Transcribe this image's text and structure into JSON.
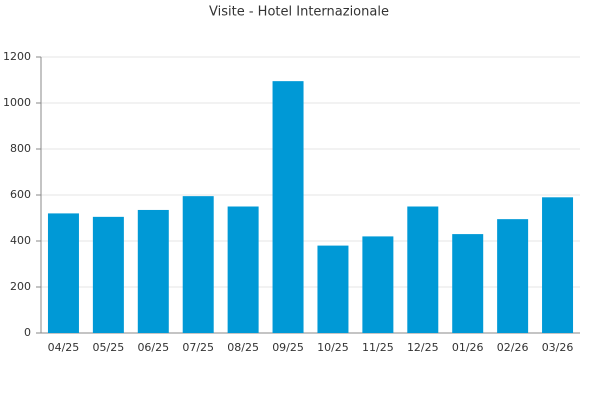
{
  "chart_data": {
    "type": "bar",
    "title": "Visite - Hotel Internazionale",
    "categories": [
      "04/25",
      "05/25",
      "06/25",
      "07/25",
      "08/25",
      "09/25",
      "10/25",
      "11/25",
      "12/25",
      "01/26",
      "02/26",
      "03/26"
    ],
    "values": [
      520,
      505,
      535,
      595,
      550,
      1095,
      380,
      420,
      550,
      430,
      495,
      590
    ],
    "color": "#0099d6",
    "ylim": [
      0,
      1200
    ],
    "yticks": [
      0,
      200,
      400,
      600,
      800,
      1000,
      1200
    ],
    "grid": true
  }
}
